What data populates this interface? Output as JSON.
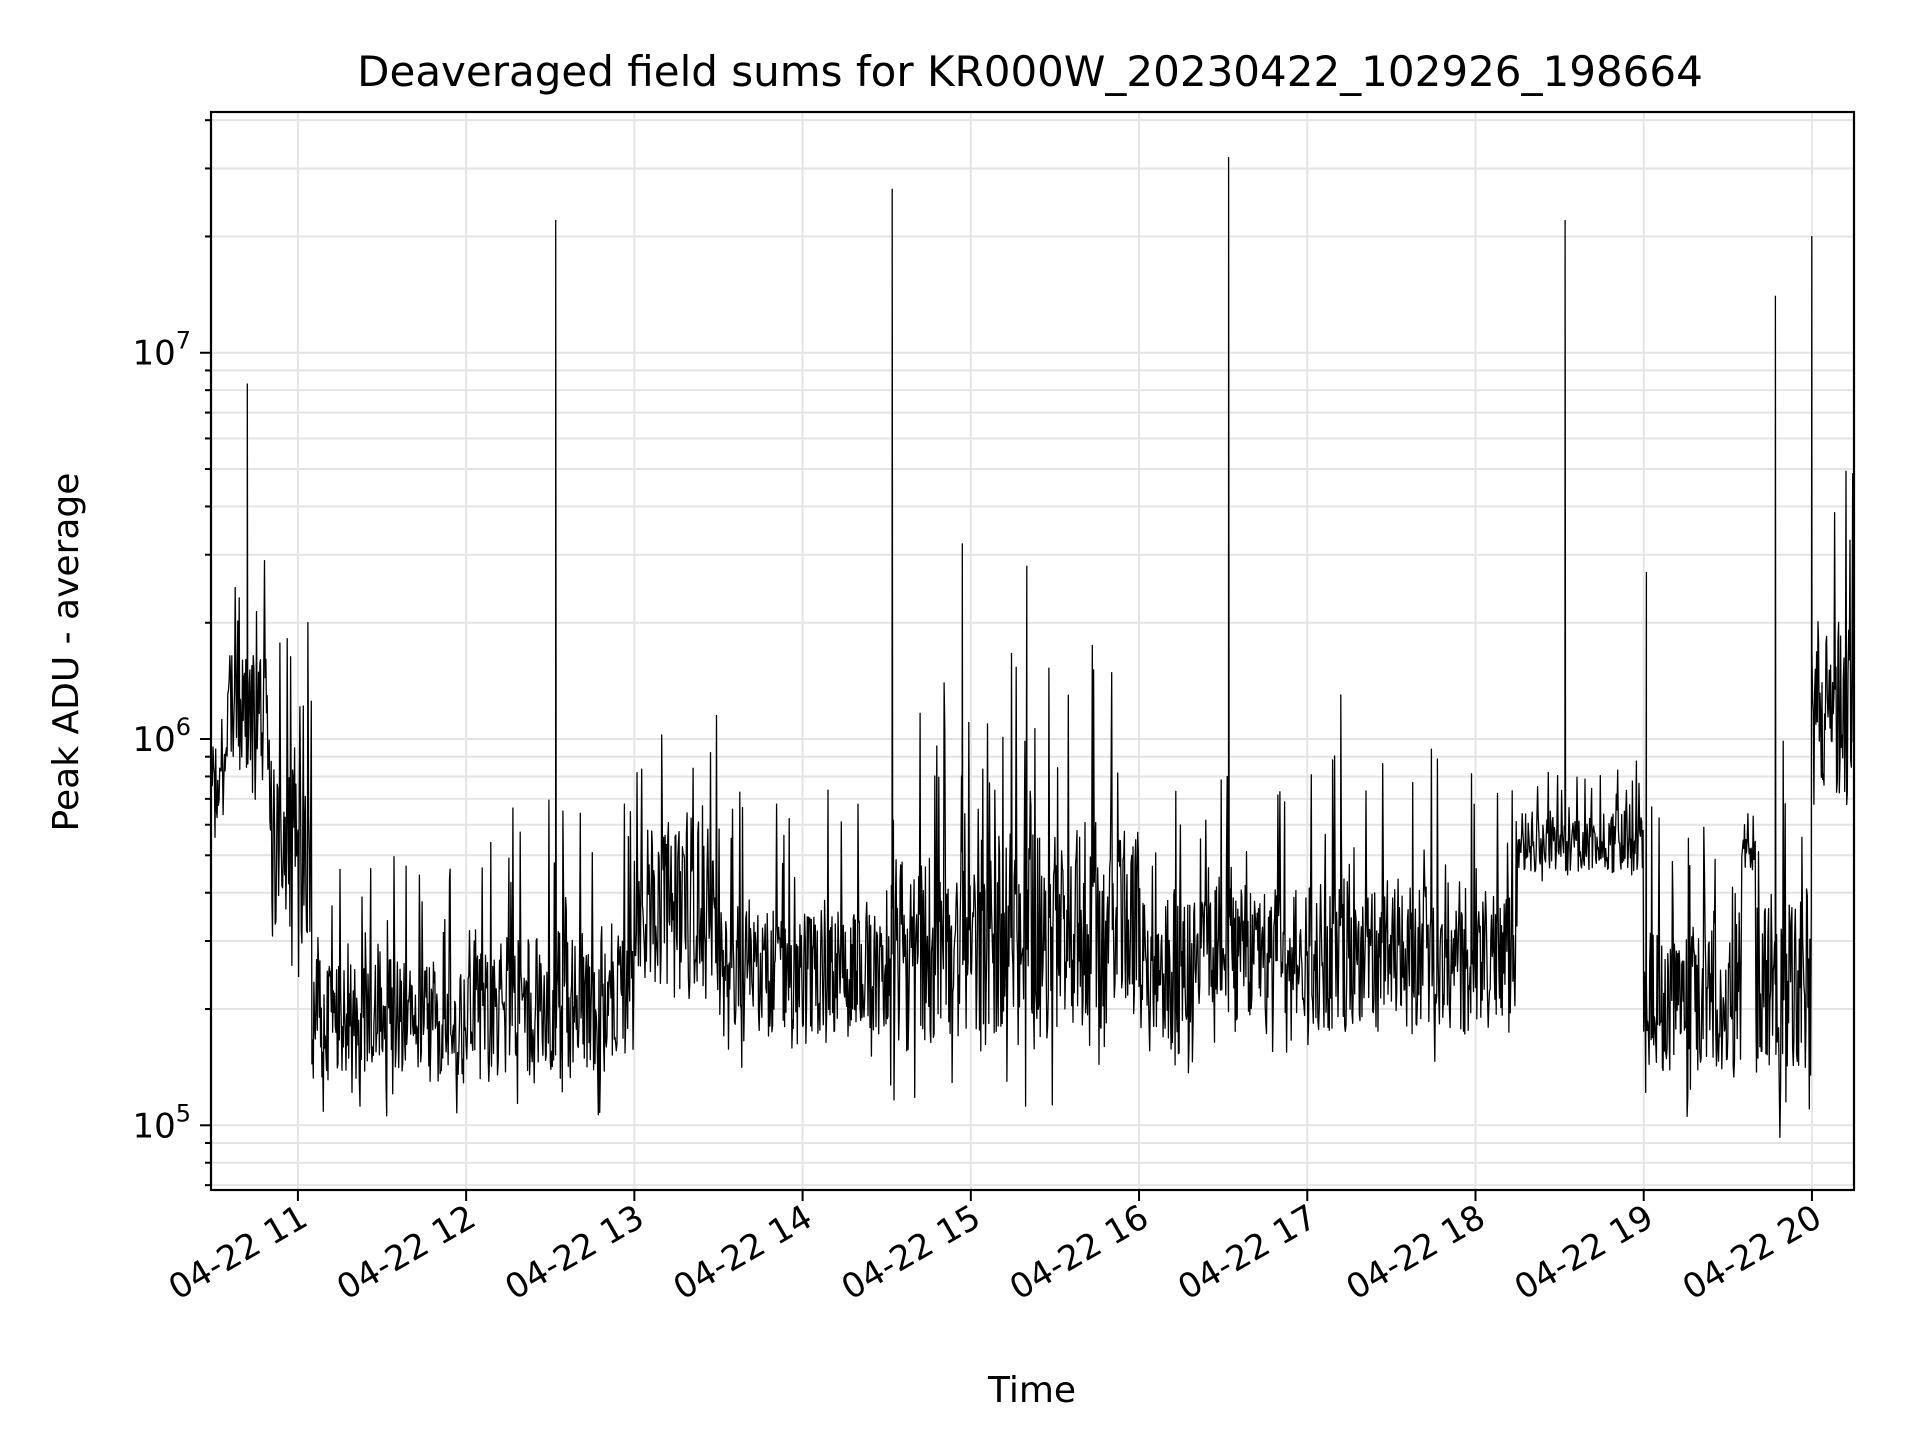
{
  "chart_data": {
    "type": "line",
    "title": "Deaveraged field sums for KR000W_20230422_102926_198664",
    "xlabel": "Time",
    "ylabel": "Peak ADU - average",
    "yscale": "log",
    "grid": "on (major and minor)",
    "legend": "none",
    "series_color": "#000000",
    "x_range": [
      "2023-04-22 10:29",
      "2023-04-22 20:15"
    ],
    "ylim": [
      68000,
      42000000
    ],
    "x_ticks": [
      {
        "value": "2023-04-22 11:00",
        "label": "04-22 11"
      },
      {
        "value": "2023-04-22 12:00",
        "label": "04-22 12"
      },
      {
        "value": "2023-04-22 13:00",
        "label": "04-22 13"
      },
      {
        "value": "2023-04-22 14:00",
        "label": "04-22 14"
      },
      {
        "value": "2023-04-22 15:00",
        "label": "04-22 15"
      },
      {
        "value": "2023-04-22 16:00",
        "label": "04-22 16"
      },
      {
        "value": "2023-04-22 17:00",
        "label": "04-22 17"
      },
      {
        "value": "2023-04-22 18:00",
        "label": "04-22 18"
      },
      {
        "value": "2023-04-22 19:00",
        "label": "04-22 19"
      },
      {
        "value": "2023-04-22 20:00",
        "label": "04-22 20"
      }
    ],
    "y_ticks": [
      {
        "value": 100000,
        "base": "10",
        "exp": "5"
      },
      {
        "value": 1000000,
        "base": "10",
        "exp": "6"
      },
      {
        "value": 10000000,
        "base": "10",
        "exp": "7"
      }
    ],
    "segments": [
      {
        "start": "2023-04-22 10:29",
        "end": "2023-04-22 10:35",
        "low": 550000,
        "high": 1500000
      },
      {
        "start": "2023-04-22 10:35",
        "end": "2023-04-22 10:50",
        "low": 650000,
        "high": 3300000
      },
      {
        "start": "2023-04-22 10:50",
        "end": "2023-04-22 11:05",
        "low": 190000,
        "high": 2100000
      },
      {
        "start": "2023-04-22 11:05",
        "end": "2023-04-22 12:00",
        "low": 105000,
        "high": 500000
      },
      {
        "start": "2023-04-22 12:00",
        "end": "2023-04-22 13:00",
        "low": 100000,
        "high": 700000
      },
      {
        "start": "2023-04-22 13:00",
        "end": "2023-04-22 13:30",
        "low": 170000,
        "high": 1400000
      },
      {
        "start": "2023-04-22 13:30",
        "end": "2023-04-22 14:30",
        "low": 130000,
        "high": 750000
      },
      {
        "start": "2023-04-22 14:30",
        "end": "2023-04-22 15:00",
        "low": 110000,
        "high": 1500000
      },
      {
        "start": "2023-04-22 15:00",
        "end": "2023-04-22 15:30",
        "low": 110000,
        "high": 1700000
      },
      {
        "start": "2023-04-22 15:30",
        "end": "2023-04-22 16:00",
        "low": 125000,
        "high": 1800000
      },
      {
        "start": "2023-04-22 16:00",
        "end": "2023-04-22 16:20",
        "low": 120000,
        "high": 900000
      },
      {
        "start": "2023-04-22 16:20",
        "end": "2023-04-22 17:00",
        "low": 150000,
        "high": 800000
      },
      {
        "start": "2023-04-22 17:00",
        "end": "2023-04-22 18:00",
        "low": 130000,
        "high": 950000
      },
      {
        "start": "2023-04-22 18:00",
        "end": "2023-04-22 18:15",
        "low": 140000,
        "high": 800000
      },
      {
        "start": "2023-04-22 18:15",
        "end": "2023-04-22 19:00",
        "low": 400000,
        "high": 900000
      },
      {
        "start": "2023-04-22 19:00",
        "end": "2023-04-22 19:35",
        "low": 105000,
        "high": 700000
      },
      {
        "start": "2023-04-22 19:35",
        "end": "2023-04-22 19:40",
        "low": 430000,
        "high": 650000
      },
      {
        "start": "2023-04-22 19:40",
        "end": "2023-04-22 20:00",
        "low": 90000,
        "high": 1200000
      },
      {
        "start": "2023-04-22 20:00",
        "end": "2023-04-22 20:15",
        "low": 500000,
        "high": 5300000
      }
    ],
    "peaks": [
      {
        "x": "2023-04-22 10:42",
        "y": 8300000
      },
      {
        "x": "2023-04-22 12:32",
        "y": 22000000
      },
      {
        "x": "2023-04-22 14:32",
        "y": 26500000
      },
      {
        "x": "2023-04-22 14:57",
        "y": 3200000
      },
      {
        "x": "2023-04-22 15:20",
        "y": 2800000
      },
      {
        "x": "2023-04-22 16:32",
        "y": 32000000
      },
      {
        "x": "2023-04-22 17:12",
        "y": 1300000
      },
      {
        "x": "2023-04-22 18:32",
        "y": 22000000
      },
      {
        "x": "2023-04-22 19:01",
        "y": 2700000
      },
      {
        "x": "2023-04-22 19:47",
        "y": 14000000
      },
      {
        "x": "2023-04-22 20:00",
        "y": 20000000
      }
    ]
  }
}
